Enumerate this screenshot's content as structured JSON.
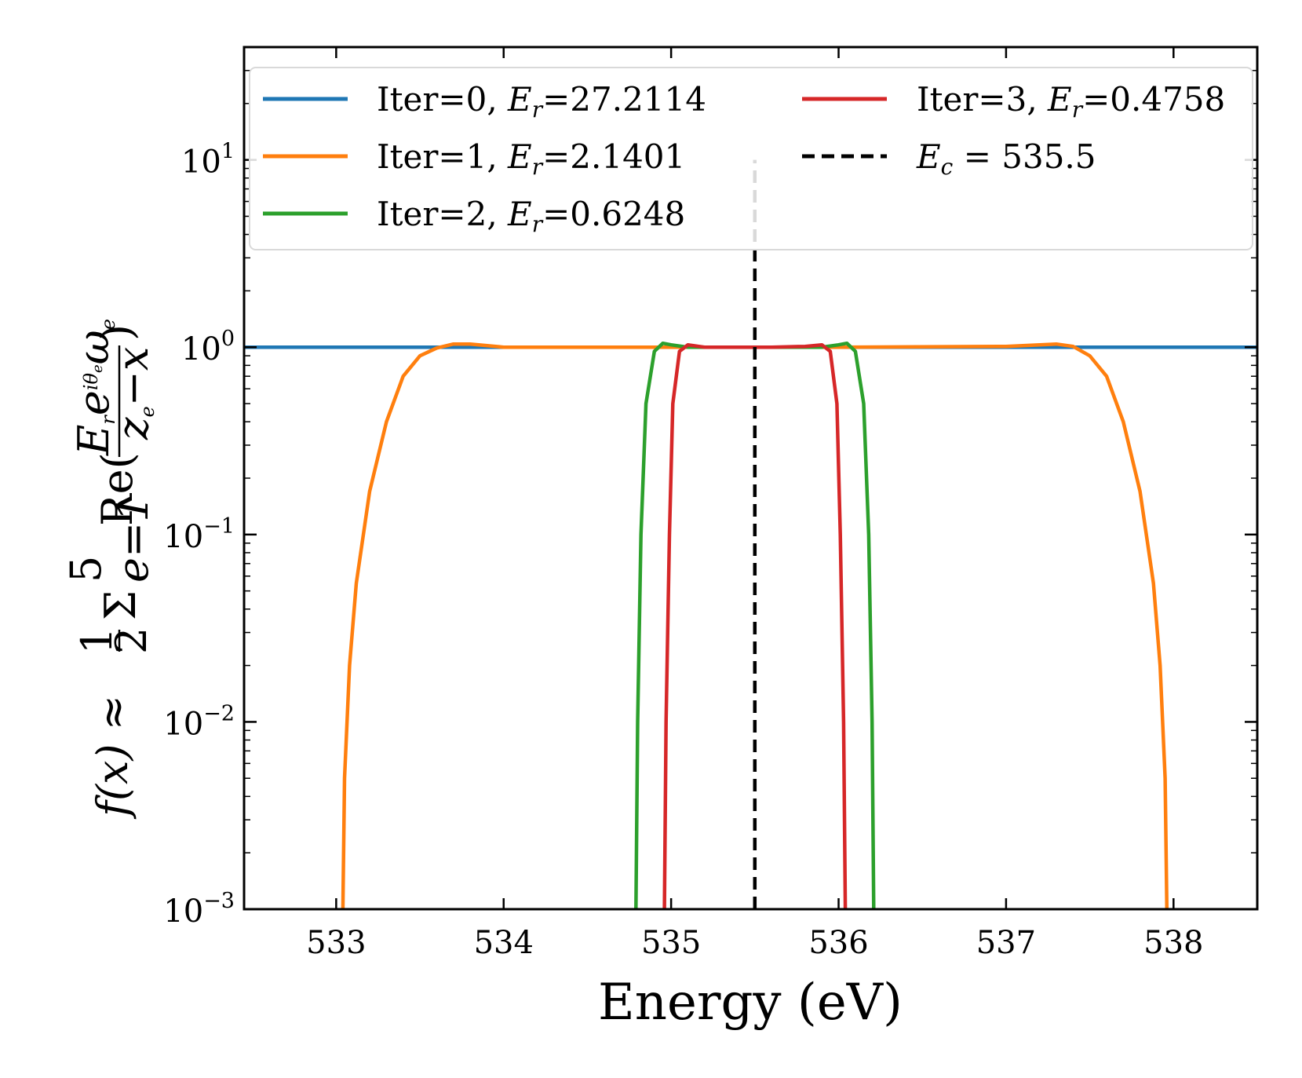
{
  "chart_data": {
    "type": "line",
    "xlabel": "Energy (eV)",
    "ylabel": {
      "lhs": "f(x) ≈",
      "frac_num": "1",
      "frac_den": "2",
      "sum_sign": "Σ",
      "sum_upper": "5",
      "sum_lower": "e=1",
      "re_text": "Re(",
      "inner_num": "E",
      "inner_num_sub": "r",
      "inner_num_tail": "e",
      "inner_num_sup": "iθ",
      "inner_num_sup_sub": "e",
      "inner_num_omega": "ω",
      "inner_num_omega_sub": "e",
      "inner_den": "z",
      "inner_den_sub": "e",
      "inner_den_tail": "−x",
      "close_paren": ")"
    },
    "xlim": [
      532.45,
      538.5
    ],
    "ylim": [
      0.001,
      40
    ],
    "yscale": "log",
    "x_ticks": [
      533,
      534,
      535,
      536,
      537,
      538
    ],
    "x_tick_labels": [
      "533",
      "534",
      "535",
      "536",
      "537",
      "538"
    ],
    "y_ticks": [
      {
        "value": 0.001,
        "base": "10",
        "exp": "−3"
      },
      {
        "value": 0.01,
        "base": "10",
        "exp": "−2"
      },
      {
        "value": 0.1,
        "base": "10",
        "exp": "−1"
      },
      {
        "value": 1,
        "base": "10",
        "exp": "0"
      },
      {
        "value": 10,
        "base": "10",
        "exp": "1"
      }
    ],
    "grid": false,
    "legend_position": "top",
    "series": [
      {
        "name": "Iter=0",
        "legend_prefix": "Iter=0,",
        "Er_label": "E",
        "Er_sub": "r",
        "Er_value": "=27.2114",
        "color": "#1f77b4",
        "style": "solid",
        "x": [
          532.45,
          538.5
        ],
        "y": [
          1.0,
          1.0
        ]
      },
      {
        "name": "Iter=1",
        "legend_prefix": "Iter=1,",
        "Er_label": "E",
        "Er_sub": "r",
        "Er_value": "=2.1401",
        "color": "#ff7f0e",
        "style": "solid",
        "x": [
          533.04,
          533.05,
          533.08,
          533.12,
          533.2,
          533.3,
          533.4,
          533.5,
          533.6,
          533.7,
          533.8,
          534.0,
          535.0,
          536.0,
          537.0,
          537.2,
          537.3,
          537.4,
          537.5,
          537.6,
          537.7,
          537.8,
          537.88,
          537.92,
          537.95,
          537.96
        ],
        "y": [
          0.001,
          0.005,
          0.02,
          0.055,
          0.17,
          0.4,
          0.7,
          0.9,
          0.99,
          1.04,
          1.04,
          1.0,
          1.0,
          1.0,
          1.01,
          1.03,
          1.04,
          1.01,
          0.9,
          0.7,
          0.4,
          0.17,
          0.055,
          0.02,
          0.005,
          0.001
        ]
      },
      {
        "name": "Iter=2",
        "legend_prefix": "Iter=2,",
        "Er_label": "E",
        "Er_sub": "r",
        "Er_value": "=0.6248",
        "color": "#2ca02c",
        "style": "solid",
        "x": [
          534.79,
          534.8,
          534.82,
          534.85,
          534.9,
          534.95,
          535.0,
          535.1,
          535.3,
          535.5,
          535.7,
          535.9,
          536.0,
          536.05,
          536.1,
          536.15,
          536.18,
          536.2,
          536.21
        ],
        "y": [
          0.001,
          0.01,
          0.1,
          0.5,
          0.95,
          1.05,
          1.03,
          1.0,
          1.0,
          1.0,
          1.0,
          1.0,
          1.03,
          1.05,
          0.95,
          0.5,
          0.1,
          0.01,
          0.001
        ]
      },
      {
        "name": "Iter=3",
        "legend_prefix": "Iter=3,",
        "Er_label": "E",
        "Er_sub": "r",
        "Er_value": "=0.4758",
        "color": "#d62728",
        "style": "solid",
        "x": [
          534.96,
          534.97,
          534.99,
          535.01,
          535.05,
          535.1,
          535.2,
          535.4,
          535.6,
          535.8,
          535.9,
          535.95,
          535.99,
          536.01,
          536.03,
          536.04
        ],
        "y": [
          0.001,
          0.01,
          0.1,
          0.5,
          0.95,
          1.03,
          1.0,
          1.0,
          1.0,
          1.01,
          1.03,
          0.95,
          0.5,
          0.1,
          0.01,
          0.001
        ]
      },
      {
        "name": "E_c",
        "legend_prefix": "",
        "Er_label": "E",
        "Er_sub": "c",
        "Er_value": " = 535.5",
        "color": "#000000",
        "style": "dashed",
        "x": [
          535.5,
          535.5
        ],
        "y": [
          0.001,
          10
        ]
      }
    ]
  }
}
